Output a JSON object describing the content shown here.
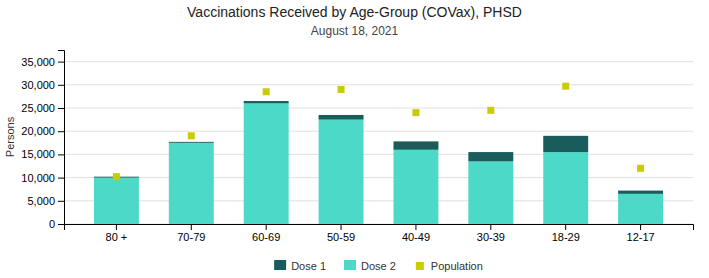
{
  "chart_data": {
    "type": "bar",
    "title": "Vaccinations Received by Age-Group (COVax), PHSD",
    "subtitle": "August 18, 2021",
    "y_label": "Persons",
    "categories": [
      "80 +",
      "70-79",
      "60-69",
      "50-59",
      "40-49",
      "30-39",
      "18-29",
      "12-17"
    ],
    "stacked": true,
    "series": [
      {
        "name": "Dose 1",
        "type": "bar",
        "color": "#1a5c5c",
        "values": [
          200,
          200,
          500,
          1000,
          1800,
          2000,
          3500,
          700
        ]
      },
      {
        "name": "Dose 2",
        "type": "bar",
        "color": "#4dd9c8",
        "values": [
          10000,
          17500,
          26000,
          22500,
          16000,
          13500,
          15500,
          6500
        ]
      },
      {
        "name": "Population",
        "type": "scatter",
        "marker": "square",
        "color": "#c8cc00",
        "values": [
          10200,
          19000,
          28500,
          29000,
          24000,
          24500,
          29700,
          12000
        ]
      }
    ],
    "ylim": [
      0,
      37500
    ],
    "yticks": [
      0,
      {
        "value": 5000,
        "label": "5,000"
      },
      {
        "value": 10000,
        "label": "10,000"
      },
      {
        "value": 15000,
        "label": "15,000"
      },
      {
        "value": 20000,
        "label": "20,000"
      },
      {
        "value": 25000,
        "label": "25,000"
      },
      {
        "value": 30000,
        "label": "30,000"
      },
      {
        "value": 35000,
        "label": "35,000"
      }
    ],
    "grid": true,
    "legend": "bottom"
  }
}
